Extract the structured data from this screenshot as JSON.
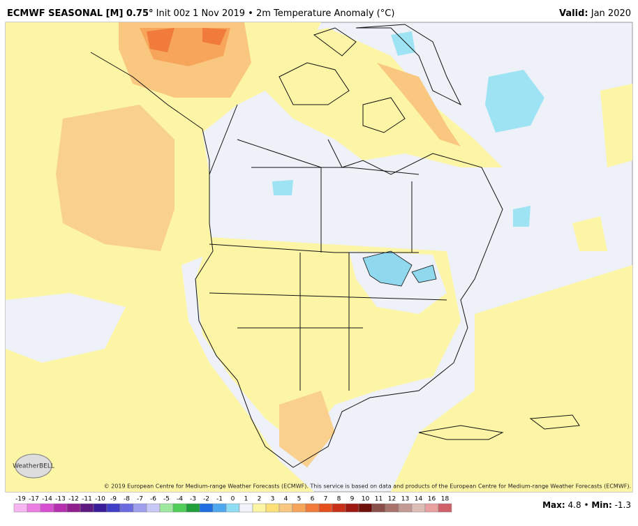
{
  "header": {
    "title_bold": "ECMWF SEASONAL [M] 0.75°",
    "title_rest": "Init 00z 1 Nov 2019 • 2m Temperature Anomaly (°C)",
    "valid_label": "Valid:",
    "valid_value": "Jan 2020"
  },
  "map": {
    "logo": "WeatherBELL",
    "credit": "© 2019 European Centre for Medium-range Weather Forecasts (ECMWF). This service is based on data and products of the European Centre for Medium-range Weather Forecasts (ECMWF)."
  },
  "colorbar": [
    {
      "label": -19,
      "color": "#f7b6f0"
    },
    {
      "label": -17,
      "color": "#ec7fe3"
    },
    {
      "label": -14,
      "color": "#d94fd2"
    },
    {
      "label": -13,
      "color": "#b52fae"
    },
    {
      "label": -12,
      "color": "#8f1f8c"
    },
    {
      "label": -11,
      "color": "#5e1a80"
    },
    {
      "label": -10,
      "color": "#3a1c9a"
    },
    {
      "label": -9,
      "color": "#3f3fc8"
    },
    {
      "label": -8,
      "color": "#6c6ce0"
    },
    {
      "label": -7,
      "color": "#a0a0ef"
    },
    {
      "label": -6,
      "color": "#c8c8f7"
    },
    {
      "label": -5,
      "color": "#9ee8a0"
    },
    {
      "label": -4,
      "color": "#4fcf5a"
    },
    {
      "label": -3,
      "color": "#1f9e3a"
    },
    {
      "label": -2,
      "color": "#1f6fe0"
    },
    {
      "label": -1,
      "color": "#4fa8f0"
    },
    {
      "label": 0,
      "color": "#8fdcf5"
    },
    {
      "label": 1,
      "color": "#f2f4fb"
    },
    {
      "label": 2,
      "color": "#fdf5a6"
    },
    {
      "label": 3,
      "color": "#fde07a"
    },
    {
      "label": 4,
      "color": "#f9c77f"
    },
    {
      "label": 5,
      "color": "#f6a55a"
    },
    {
      "label": 6,
      "color": "#f07b3a"
    },
    {
      "label": 7,
      "color": "#e6501f"
    },
    {
      "label": 8,
      "color": "#c9301a"
    },
    {
      "label": 9,
      "color": "#9c1a12"
    },
    {
      "label": 10,
      "color": "#6e0f0a"
    },
    {
      "label": 11,
      "color": "#8a4f4a"
    },
    {
      "label": 12,
      "color": "#a8736d"
    },
    {
      "label": 13,
      "color": "#c49a94"
    },
    {
      "label": 14,
      "color": "#dcbdb8"
    },
    {
      "label": 16,
      "color": "#e8a0a0"
    },
    {
      "label": 18,
      "color": "#d0606a"
    }
  ],
  "footer": {
    "max_label": "Max:",
    "max_value": "4.8",
    "separator": "•",
    "min_label": "Min:",
    "min_value": "-1.3"
  }
}
